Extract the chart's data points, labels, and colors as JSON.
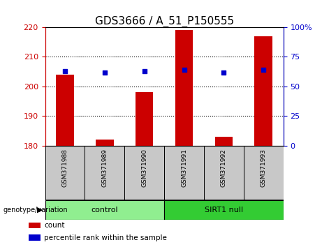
{
  "title": "GDS3666 / A_51_P150555",
  "categories": [
    "GSM371988",
    "GSM371989",
    "GSM371990",
    "GSM371991",
    "GSM371992",
    "GSM371993"
  ],
  "red_values": [
    204.0,
    182.0,
    198.0,
    219.0,
    183.0,
    217.0
  ],
  "blue_percentiles": [
    63,
    62,
    63,
    64,
    62,
    64
  ],
  "ylim_left": [
    180,
    220
  ],
  "ylim_right": [
    0,
    100
  ],
  "yticks_left": [
    180,
    190,
    200,
    210,
    220
  ],
  "yticks_right": [
    0,
    25,
    50,
    75,
    100
  ],
  "grid_lines": [
    190,
    200,
    210
  ],
  "groups": [
    {
      "label": "control",
      "indices": [
        0,
        1,
        2
      ],
      "color": "#90EE90"
    },
    {
      "label": "SIRT1 null",
      "indices": [
        3,
        4,
        5
      ],
      "color": "#33CC33"
    }
  ],
  "group_label": "genotype/variation",
  "legend_red": "count",
  "legend_blue": "percentile rank within the sample",
  "bar_color": "#CC0000",
  "dot_color": "#0000CC",
  "title_fontsize": 11,
  "axis_left_color": "#CC0000",
  "axis_right_color": "#0000CC",
  "bar_width": 0.45,
  "background_color": "#ffffff",
  "xtick_bg": "#c8c8c8"
}
